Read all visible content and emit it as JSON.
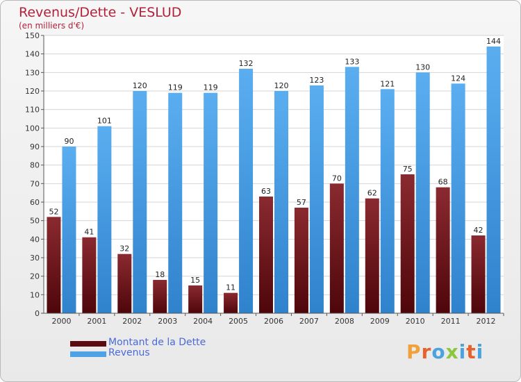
{
  "title": "Revenus/Dette - VESLUD",
  "subtitle": "(en milliers d'€)",
  "colors": {
    "dette": "#7a1a22",
    "revenus": "#4da2e6",
    "title": "#b3203a",
    "legend_text": "#4a6ad8"
  },
  "legend": [
    {
      "label": "Montant de la Dette",
      "color": "#5c0b10"
    },
    {
      "label": "Revenus",
      "color": "#4da2e6"
    }
  ],
  "logo": {
    "letters": [
      "P",
      "r",
      "o",
      "x",
      "i",
      "t",
      "i"
    ],
    "colors": [
      "#f0a13a",
      "#e4632d",
      "#4aa3df",
      "#8cc63f",
      "#4aa3df",
      "#e4632d",
      "#4aa3df"
    ]
  },
  "chart_data": {
    "type": "bar",
    "categories": [
      "2000",
      "2001",
      "2002",
      "2003",
      "2004",
      "2005",
      "2006",
      "2007",
      "2008",
      "2009",
      "2010",
      "2011",
      "2012"
    ],
    "series": [
      {
        "name": "Montant de la Dette",
        "values": [
          52,
          41,
          32,
          18,
          15,
          11,
          63,
          57,
          70,
          62,
          75,
          68,
          42
        ]
      },
      {
        "name": "Revenus",
        "values": [
          90,
          101,
          120,
          119,
          119,
          132,
          120,
          123,
          133,
          121,
          130,
          124,
          144
        ]
      }
    ],
    "title": "Revenus/Dette - VESLUD",
    "subtitle": "(en milliers d'€)",
    "xlabel": "",
    "ylabel": "",
    "ylim": [
      0,
      150
    ],
    "yticks": [
      0,
      10,
      20,
      30,
      40,
      50,
      60,
      70,
      80,
      90,
      100,
      110,
      120,
      130,
      140,
      150
    ],
    "grid": true,
    "legend_position": "bottom-left",
    "data_labels": true
  }
}
